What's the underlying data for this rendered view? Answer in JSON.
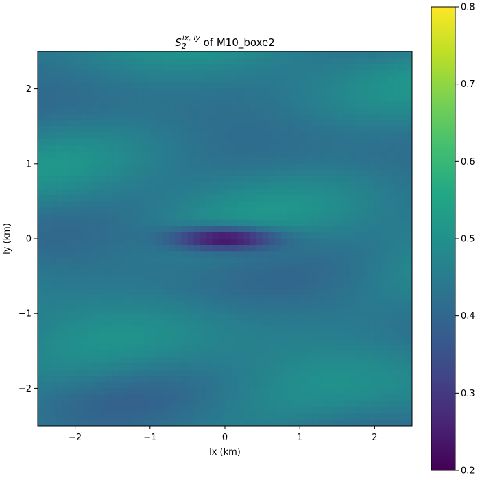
{
  "chart_data": {
    "type": "heatmap",
    "title": {
      "symbol": "S",
      "subscript": "2",
      "superscript": "lx, ly",
      "suffix": " of M10_boxe2"
    },
    "xlabel": "lx (km)",
    "ylabel": "ly (km)",
    "xlim": [
      -2.5,
      2.5
    ],
    "ylim": [
      -2.5,
      2.5
    ],
    "xticks": [
      -2,
      -1,
      0,
      1,
      2
    ],
    "yticks": [
      -2,
      -1,
      0,
      1,
      2
    ],
    "xtick_labels": [
      "−2",
      "−1",
      "0",
      "1",
      "2"
    ],
    "ytick_labels": [
      "−2",
      "−1",
      "0",
      "1",
      "2"
    ],
    "colormap": "viridis",
    "colorbar": {
      "vmin": 0.2,
      "vmax": 0.8,
      "ticks": [
        0.2,
        0.3,
        0.4,
        0.5,
        0.6,
        0.7,
        0.8
      ],
      "tick_labels": [
        "0.2",
        "0.3",
        "0.4",
        "0.5",
        "0.6",
        "0.7",
        "0.8"
      ]
    },
    "field": {
      "background_value": 0.45,
      "minimum": {
        "x": 0.0,
        "y": 0.0,
        "value": 0.2
      },
      "minimum_extent_x": [
        -0.7,
        0.7
      ],
      "minimum_extent_y": [
        -0.15,
        0.15
      ]
    }
  }
}
